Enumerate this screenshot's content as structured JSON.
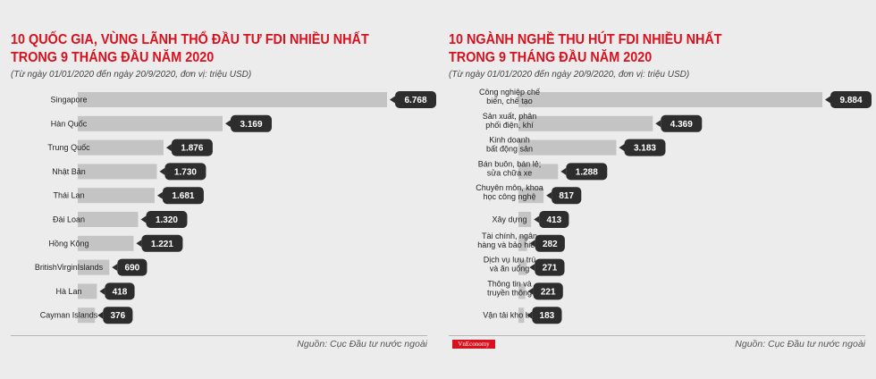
{
  "brand": "VnEconomy",
  "colors": {
    "title": "#d8111f",
    "bar": "#c4c4c4",
    "badge": "#2d2d2d"
  },
  "chart_data": [
    {
      "type": "bar",
      "orientation": "horizontal",
      "title_lines": [
        "10 QUỐC GIA, VÙNG LÃNH THỔ ĐẦU TƯ FDI NHIỀU NHẤT",
        "TRONG 9 THÁNG ĐẦU NĂM 2020"
      ],
      "subtitle": "(Từ ngày 01/01/2020 đến ngày 20/9/2020, đơn vị: triệu USD)",
      "categories": [
        [
          "Singapore"
        ],
        [
          "Hàn Quốc"
        ],
        [
          "Trung Quốc"
        ],
        [
          "Nhật Bản"
        ],
        [
          "Thái Lan"
        ],
        [
          "Đài Loan"
        ],
        [
          "Hồng Kông"
        ],
        [
          "BritishVirginIslands"
        ],
        [
          "Hà Lan"
        ],
        [
          "Cayman Islands"
        ]
      ],
      "values": [
        6768,
        3169,
        1876,
        1730,
        1681,
        1320,
        1221,
        690,
        418,
        376
      ],
      "value_labels": [
        "6.768",
        "3.169",
        "1.876",
        "1.730",
        "1.681",
        "1.320",
        "1.221",
        "690",
        "418",
        "376"
      ],
      "source": "Nguồn: Cục Đầu tư nước ngoài",
      "grid": false,
      "legend": "none"
    },
    {
      "type": "bar",
      "orientation": "horizontal",
      "title_lines": [
        "10 NGÀNH NGHỀ THU HÚT FDI NHIỀU NHẤT",
        "TRONG 9 THÁNG ĐẦU NĂM 2020"
      ],
      "subtitle": "(Từ ngày 01/01/2020 đến ngày 20/9/2020, đơn vị: triệu USD)",
      "categories": [
        [
          "Công nghiệp chế",
          "biến, chế tạo"
        ],
        [
          "Sản xuất, phân",
          "phối điện, khí"
        ],
        [
          "Kinh doanh",
          "bất động sản"
        ],
        [
          "Bán buôn, bán lẻ;",
          "sửa chữa xe"
        ],
        [
          "Chuyên môn, khoa",
          "học công nghệ"
        ],
        [
          "Xây dựng"
        ],
        [
          "Tài chính, ngân",
          "hàng và bảo hiểm"
        ],
        [
          "Dịch vụ lưu trú",
          "và ăn uống"
        ],
        [
          "Thông tin và",
          "truyền thông"
        ],
        [
          "Vận tải kho bãi"
        ]
      ],
      "values": [
        9884,
        4369,
        3183,
        1288,
        817,
        413,
        282,
        271,
        221,
        183
      ],
      "value_labels": [
        "9.884",
        "4.369",
        "3.183",
        "1.288",
        "817",
        "413",
        "282",
        "271",
        "221",
        "183"
      ],
      "source": "Nguồn: Cục Đầu tư nước ngoài",
      "grid": false,
      "legend": "none"
    }
  ]
}
